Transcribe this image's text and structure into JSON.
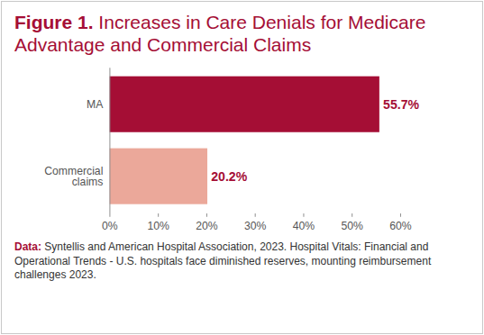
{
  "chart_data": {
    "type": "bar",
    "title": "Figure 1. Increases in Care Denials for Medicare Advantage and Commercial Claims",
    "caption": "Data: Syntellis and American Hospital Association, 2023. Hospital Vitals: Financial and Operational Trends - U.S. hospitals face diminished reserves, mounting reimbursement challenges 2023.",
    "orientation": "horizontal",
    "categories": [
      "MA",
      "Commercial claims"
    ],
    "values": [
      55.7,
      20.2
    ],
    "value_labels": [
      "55.7%",
      "20.2%"
    ],
    "colors": [
      "#a50e35",
      "#eba89a"
    ],
    "data_labels": true,
    "grid": false,
    "xlim": [
      0,
      60
    ],
    "xticks": [
      {
        "value": 0,
        "label": "0%"
      },
      {
        "value": 10,
        "label": "10%"
      },
      {
        "value": 20,
        "label": "20%"
      },
      {
        "value": 30,
        "label": "30%"
      },
      {
        "value": 40,
        "label": "40%"
      },
      {
        "value": 50,
        "label": "50%"
      },
      {
        "value": 60,
        "label": "60%"
      }
    ]
  }
}
